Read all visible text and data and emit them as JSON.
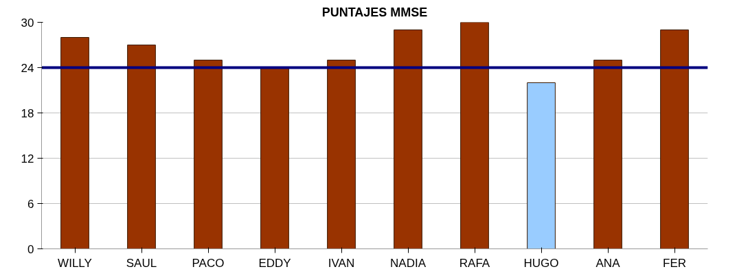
{
  "chart_data": {
    "type": "bar",
    "title": "PUNTAJES MMSE",
    "categories": [
      "WILLY",
      "SAUL",
      "PACO",
      "EDDY",
      "IVAN",
      "NADIA",
      "RAFA",
      "HUGO",
      "ANA",
      "FER"
    ],
    "values": [
      28,
      27,
      25,
      24,
      25,
      29,
      30,
      22,
      25,
      29
    ],
    "colors": [
      "#993300",
      "#993300",
      "#993300",
      "#993300",
      "#993300",
      "#993300",
      "#993300",
      "#99ccff",
      "#993300",
      "#993300"
    ],
    "ylim": [
      0,
      30
    ],
    "yticks": [
      0,
      6,
      12,
      18,
      24,
      30
    ],
    "grid": "y",
    "ref_lines": [
      {
        "axis": "y",
        "value": 24,
        "color": "#000080"
      }
    ]
  }
}
